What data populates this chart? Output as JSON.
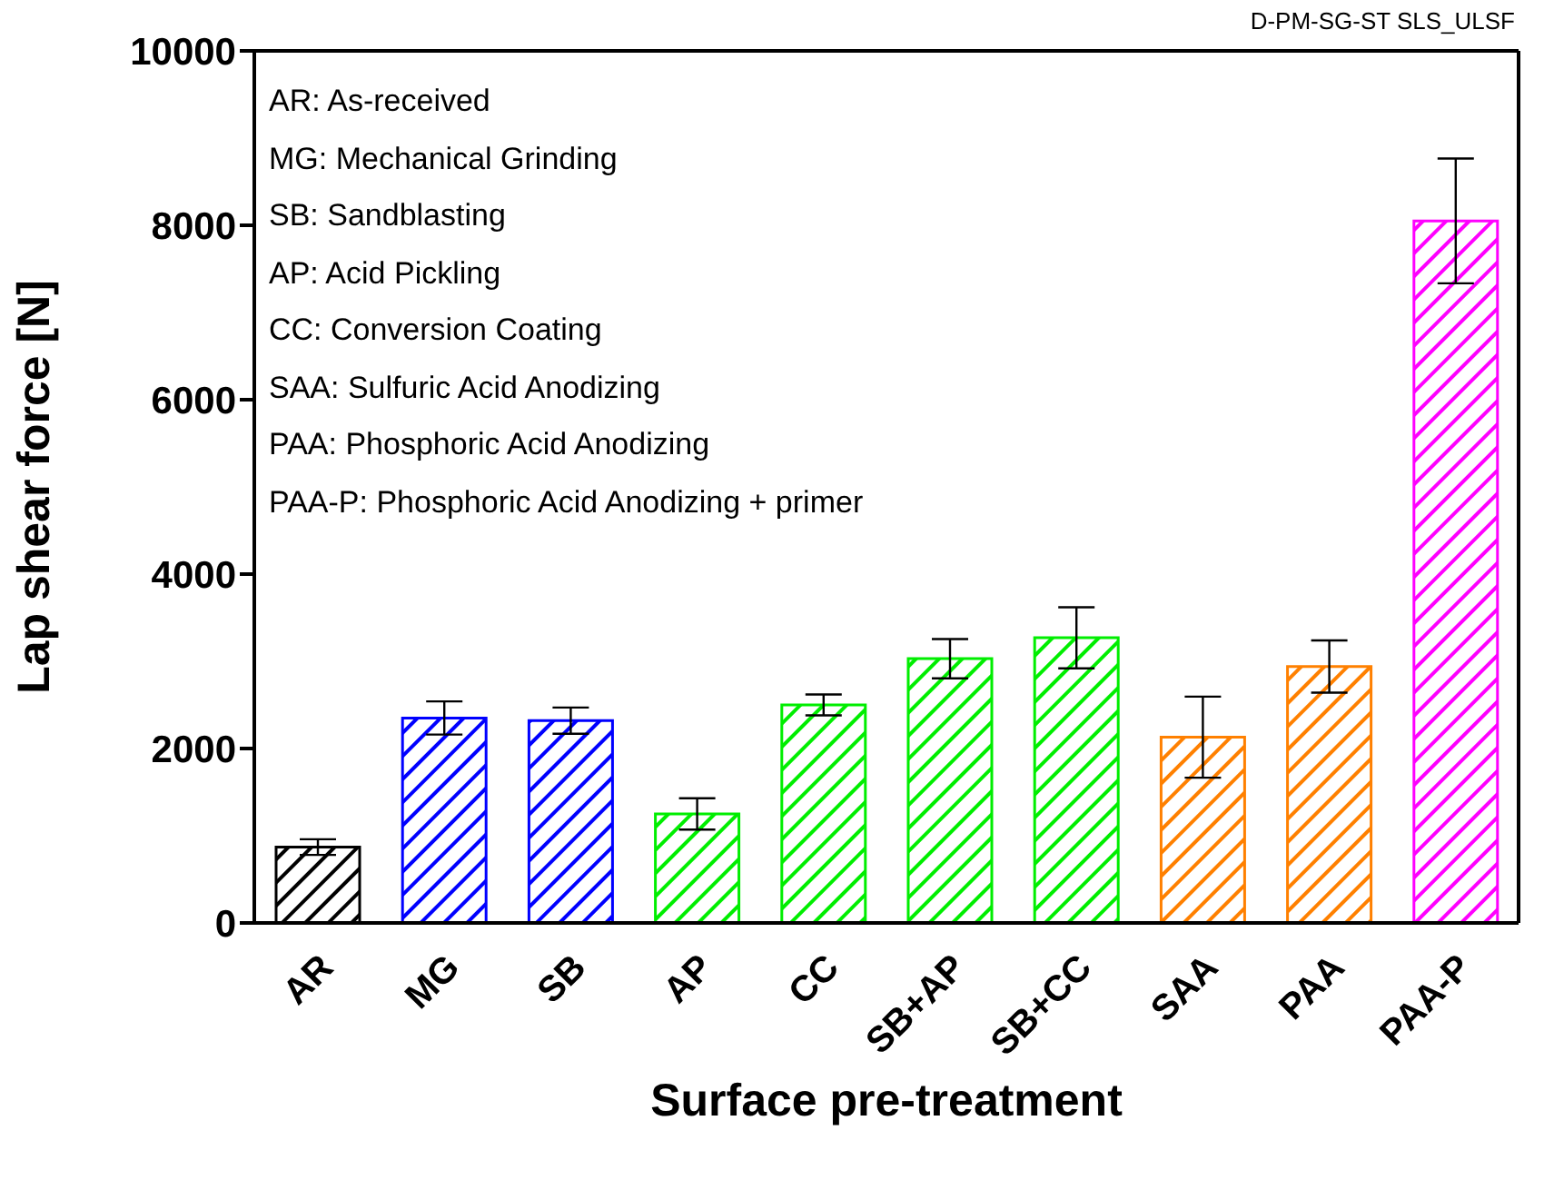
{
  "chart_data": {
    "type": "bar",
    "xlabel": "Surface pre-treatment",
    "ylabel": "Lap shear force [N]",
    "categories": [
      "AR",
      "MG",
      "SB",
      "AP",
      "CC",
      "SB+AP",
      "SB+CC",
      "SAA",
      "PAA",
      "PAA-P"
    ],
    "values": [
      870,
      2350,
      2320,
      1250,
      2500,
      3030,
      3270,
      2130,
      2940,
      8050
    ],
    "errors": [
      90,
      190,
      150,
      180,
      120,
      225,
      350,
      465,
      300,
      715
    ],
    "colors": [
      "#000000",
      "#0000ff",
      "#0000ff",
      "#00ee00",
      "#00ee00",
      "#00ee00",
      "#00ee00",
      "#ff8000",
      "#ff8000",
      "#ff00ff"
    ],
    "ylim": [
      0,
      10000
    ],
    "yticks": [
      0,
      2000,
      4000,
      6000,
      8000,
      10000
    ],
    "grid": false,
    "legend": false,
    "annotations": [
      "D-PM-SG-ST SLS_ULSF",
      "AR: As-received",
      "MG: Mechanical Grinding",
      "SB: Sandblasting",
      "AP: Acid Pickling",
      "CC: Conversion Coating",
      "SAA: Sulfuric Acid Anodizing",
      "PAA: Phosphoric Acid Anodizing",
      "PAA-P: Phosphoric Acid Anodizing + primer"
    ]
  }
}
